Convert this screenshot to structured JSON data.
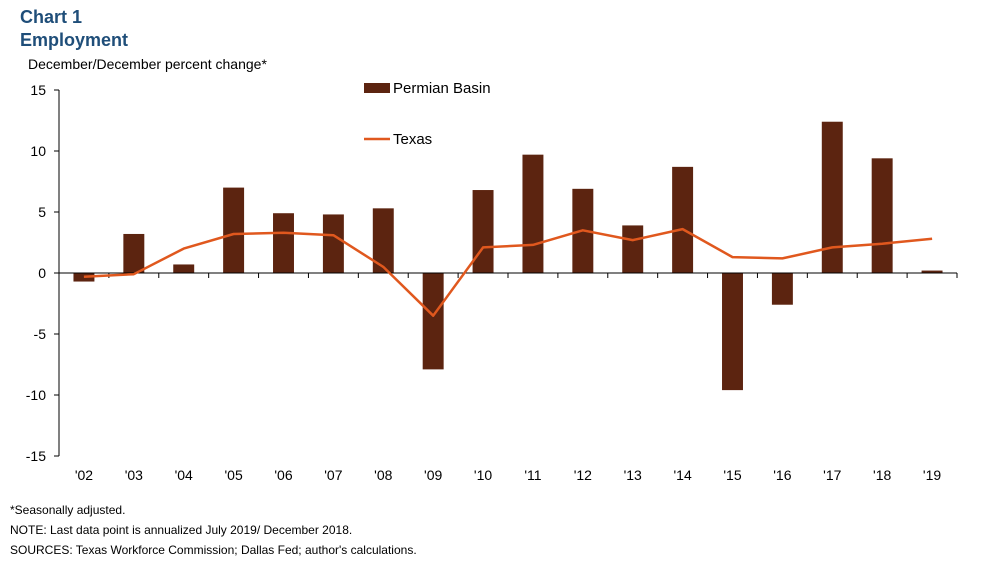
{
  "header": {
    "title_line1": "Chart 1",
    "title_line2": "Employment",
    "subtitle": "December/December percent change*"
  },
  "footnotes": {
    "seasonal": "*Seasonally adjusted.",
    "note": "NOTE: Last data point is annualized July 2019/ December 2018.",
    "sources": "SOURCES: Texas Workforce Commission; Dallas Fed; author's calculations."
  },
  "chart_data": {
    "type": "bar",
    "categories": [
      "'02",
      "'03",
      "'04",
      "'05",
      "'06",
      "'07",
      "'08",
      "'09",
      "'10",
      "'11",
      "'12",
      "'13",
      "'14",
      "'15",
      "'16",
      "'17",
      "'18",
      "'19"
    ],
    "series": [
      {
        "name": "Permian Basin",
        "type": "bar",
        "color": "#5c2410",
        "values": [
          -0.7,
          3.2,
          0.7,
          7.0,
          4.9,
          4.8,
          5.3,
          -7.9,
          6.8,
          9.7,
          6.9,
          3.9,
          8.7,
          -9.6,
          -2.6,
          12.4,
          9.4,
          0.2
        ]
      },
      {
        "name": "Texas",
        "type": "line",
        "color": "#e0581e",
        "values": [
          -0.3,
          -0.1,
          2.0,
          3.2,
          3.3,
          3.1,
          0.5,
          -3.5,
          2.1,
          2.3,
          3.5,
          2.7,
          3.6,
          1.3,
          1.2,
          2.1,
          2.4,
          2.8
        ]
      }
    ],
    "ylim": [
      -15,
      15
    ],
    "yticks": [
      -15,
      -10,
      -5,
      0,
      5,
      10,
      15
    ],
    "grid": false,
    "legend_position": "top-center"
  }
}
